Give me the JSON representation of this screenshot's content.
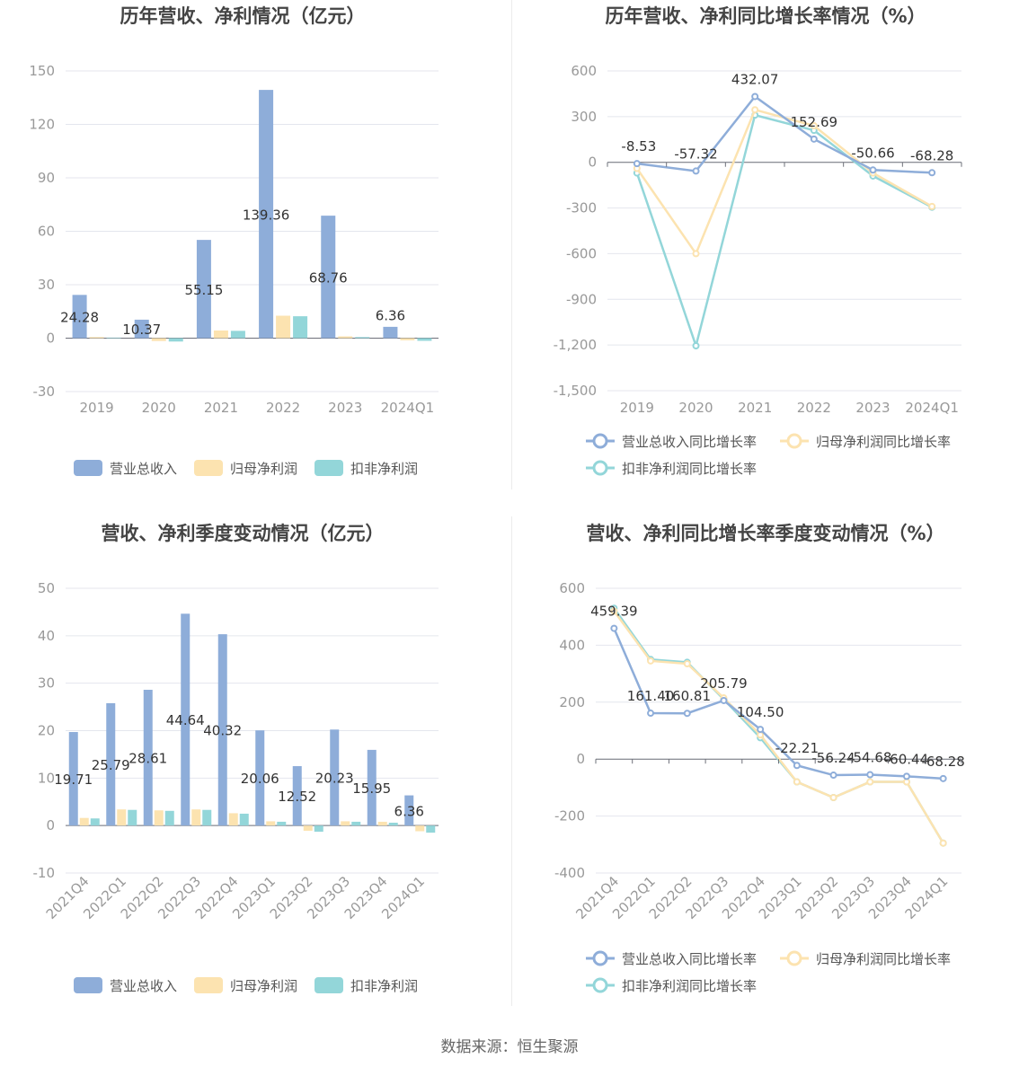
{
  "colors": {
    "revenue": "#8eadd9",
    "net_profit": "#fce3b0",
    "deducted_profit": "#93d6d9",
    "grid": "#e4e6ee",
    "axis_text": "#999999",
    "title": "#444444",
    "label": "#333333"
  },
  "source": "数据来源：恒生聚源",
  "chart_data": [
    {
      "id": "annual-bars",
      "type": "bar",
      "title": "历年营收、净利情况（亿元）",
      "categories": [
        "2019",
        "2020",
        "2021",
        "2022",
        "2023",
        "2024Q1"
      ],
      "ylim": [
        -30,
        150
      ],
      "yticks": [
        -30,
        0,
        30,
        60,
        90,
        120,
        150
      ],
      "series": [
        {
          "name": "营业总收入",
          "values": [
            24.28,
            10.37,
            55.15,
            139.36,
            68.76,
            6.36
          ],
          "labels": [
            "24.28",
            "10.37",
            "55.15",
            "139.36",
            "68.76",
            "6.36"
          ]
        },
        {
          "name": "归母净利润",
          "values": [
            0.6,
            -1.6,
            4.3,
            12.6,
            1.0,
            -1.2
          ]
        },
        {
          "name": "扣非净利润",
          "values": [
            0.3,
            -1.9,
            4.1,
            12.3,
            0.6,
            -1.5
          ]
        }
      ],
      "legend": "bottom"
    },
    {
      "id": "annual-growth",
      "type": "line",
      "title": "历年营收、净利同比增长率情况（%）",
      "categories": [
        "2019",
        "2020",
        "2021",
        "2022",
        "2023",
        "2024Q1"
      ],
      "ylim": [
        -1500,
        600
      ],
      "yticks": [
        -1500,
        -1200,
        -900,
        -600,
        -300,
        0,
        300,
        600
      ],
      "ytick_labels": [
        "-1,500",
        "-1,200",
        "-900",
        "-600",
        "-300",
        "0",
        "300",
        "600"
      ],
      "series": [
        {
          "name": "营业总收入同比增长率",
          "values": [
            -8.53,
            -57.32,
            432.07,
            152.69,
            -50.66,
            -68.28
          ],
          "labels": [
            "-8.53",
            "-57.32",
            "432.07",
            "152.69",
            "-50.66",
            "-68.28"
          ]
        },
        {
          "name": "归母净利润同比增长率",
          "values": [
            -40,
            -600,
            345,
            240,
            -70,
            -290
          ]
        },
        {
          "name": "扣非净利润同比增长率",
          "values": [
            -70,
            -1205,
            310,
            210,
            -90,
            -295
          ]
        }
      ],
      "legend": "bottom"
    },
    {
      "id": "quarterly-bars",
      "type": "bar",
      "title": "营收、净利季度变动情况（亿元）",
      "categories": [
        "2021Q4",
        "2022Q1",
        "2022Q2",
        "2022Q3",
        "2022Q4",
        "2023Q1",
        "2023Q2",
        "2023Q3",
        "2023Q4",
        "2024Q1"
      ],
      "ylim": [
        -10,
        50
      ],
      "yticks": [
        -10,
        0,
        10,
        20,
        30,
        40,
        50
      ],
      "series": [
        {
          "name": "营业总收入",
          "values": [
            19.71,
            25.79,
            28.61,
            44.64,
            40.32,
            20.06,
            12.52,
            20.23,
            15.95,
            6.36
          ],
          "labels": [
            "19.71",
            "25.79",
            "28.61",
            "44.64",
            "40.32",
            "20.06",
            "12.52",
            "20.23",
            "15.95",
            "6.36"
          ]
        },
        {
          "name": "归母净利润",
          "values": [
            1.6,
            3.4,
            3.2,
            3.4,
            2.6,
            0.9,
            -1.1,
            0.9,
            0.8,
            -1.2
          ]
        },
        {
          "name": "扣非净利润",
          "values": [
            1.5,
            3.3,
            3.1,
            3.3,
            2.5,
            0.8,
            -1.3,
            0.8,
            0.6,
            -1.5
          ]
        }
      ],
      "legend": "bottom"
    },
    {
      "id": "quarterly-growth",
      "type": "line",
      "title": "营收、净利同比增长率季度变动情况（%）",
      "categories": [
        "2021Q4",
        "2022Q1",
        "2022Q2",
        "2022Q3",
        "2022Q4",
        "2023Q1",
        "2023Q2",
        "2023Q3",
        "2023Q4",
        "2024Q1"
      ],
      "ylim": [
        -400,
        600
      ],
      "yticks": [
        -400,
        -200,
        0,
        200,
        400,
        600
      ],
      "ytick_labels": [
        "-400",
        "-200",
        "0",
        "200",
        "400",
        "600"
      ],
      "series": [
        {
          "name": "营业总收入同比增长率",
          "values": [
            459.39,
            161.4,
            160.81,
            205.79,
            104.5,
            -22.21,
            -56.24,
            -54.68,
            -60.44,
            -68.28
          ],
          "labels": [
            "459.39",
            "161.40",
            "160.81",
            "205.79",
            "104.50",
            "-22.21",
            "-56.24",
            "-54.68",
            "-60.44",
            "-68.28"
          ]
        },
        {
          "name": "归母净利润同比增长率",
          "values": [
            520,
            345,
            335,
            215,
            85,
            -80,
            -135,
            -80,
            -80,
            -295
          ]
        },
        {
          "name": "扣非净利润同比增长率",
          "values": [
            530,
            350,
            340,
            210,
            75,
            -80,
            -135,
            -80,
            -80,
            -295
          ]
        }
      ],
      "legend": "bottom"
    }
  ]
}
